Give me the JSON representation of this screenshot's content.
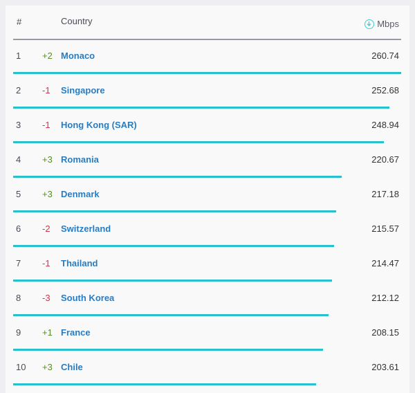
{
  "header": {
    "rank": "#",
    "country": "Country",
    "speed": "Mbps",
    "speed_icon": "download-icon"
  },
  "colors": {
    "up": "#5a8a2a",
    "down": "#d0354e",
    "bar": "#28c0cc",
    "link": "#2a7cc0"
  },
  "max_speed": 260.74,
  "rows": [
    {
      "rank": "1",
      "change": "+2",
      "country": "Monaco",
      "speed": "260.74",
      "value": 260.74
    },
    {
      "rank": "2",
      "change": "-1",
      "country": "Singapore",
      "speed": "252.68",
      "value": 252.68
    },
    {
      "rank": "3",
      "change": "-1",
      "country": "Hong Kong (SAR)",
      "speed": "248.94",
      "value": 248.94
    },
    {
      "rank": "4",
      "change": "+3",
      "country": "Romania",
      "speed": "220.67",
      "value": 220.67
    },
    {
      "rank": "5",
      "change": "+3",
      "country": "Denmark",
      "speed": "217.18",
      "value": 217.18
    },
    {
      "rank": "6",
      "change": "-2",
      "country": "Switzerland",
      "speed": "215.57",
      "value": 215.57
    },
    {
      "rank": "7",
      "change": "-1",
      "country": "Thailand",
      "speed": "214.47",
      "value": 214.47
    },
    {
      "rank": "8",
      "change": "-3",
      "country": "South Korea",
      "speed": "212.12",
      "value": 212.12
    },
    {
      "rank": "9",
      "change": "+1",
      "country": "France",
      "speed": "208.15",
      "value": 208.15
    },
    {
      "rank": "10",
      "change": "+3",
      "country": "Chile",
      "speed": "203.61",
      "value": 203.61
    }
  ]
}
